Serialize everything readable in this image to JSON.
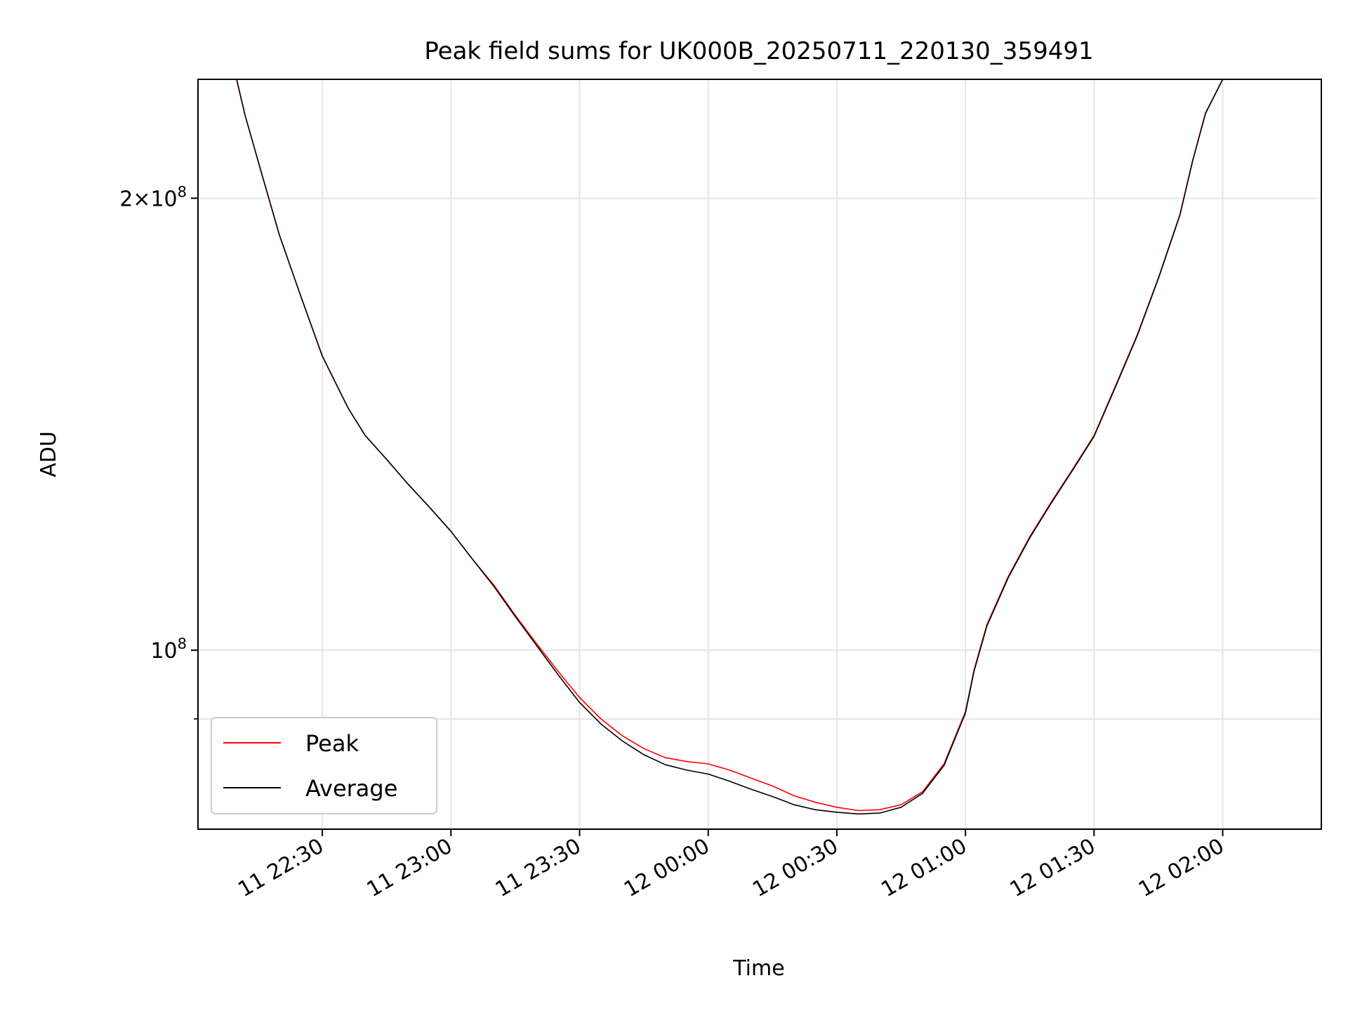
{
  "chart_data": {
    "type": "line",
    "title": "Peak field sums for UK000B_20250711_220130_359491",
    "xlabel": "Time",
    "ylabel": "ADU",
    "yscale": "log",
    "xlim": [
      "11 22:01",
      "12 02:23"
    ],
    "ylim": [
      76000000,
      240000000
    ],
    "grid": true,
    "legend_position": "lower-left",
    "x_ticks": [
      "11 22:30",
      "11 23:00",
      "11 23:30",
      "12 00:00",
      "12 00:30",
      "12 01:00",
      "12 01:30",
      "12 02:00"
    ],
    "y_major_ticks": [
      {
        "value": 100000000,
        "label": "10^8"
      },
      {
        "value": 200000000,
        "label": "2×10^8"
      }
    ],
    "y_minor_ticks": [
      90000000
    ],
    "series": [
      {
        "name": "Peak",
        "color": "#ff0000",
        "points": [
          [
            "11 22:10",
            240000000
          ],
          [
            "11 22:12",
            227000000
          ],
          [
            "11 22:16",
            207000000
          ],
          [
            "11 22:20",
            189000000
          ],
          [
            "11 22:25",
            172000000
          ],
          [
            "11 22:30",
            157000000
          ],
          [
            "11 22:36",
            145000000
          ],
          [
            "11 22:40",
            139000000
          ],
          [
            "11 22:45",
            134000000
          ],
          [
            "11 22:50",
            129000000
          ],
          [
            "11 22:55",
            124500000
          ],
          [
            "11 23:00",
            120000000
          ],
          [
            "11 23:05",
            115000000
          ],
          [
            "11 23:10",
            110500000
          ],
          [
            "11 23:15",
            105500000
          ],
          [
            "11 23:20",
            101000000
          ],
          [
            "11 23:25",
            96800000
          ],
          [
            "11 23:30",
            93000000
          ],
          [
            "11 23:35",
            90000000
          ],
          [
            "11 23:40",
            87700000
          ],
          [
            "11 23:45",
            86000000
          ],
          [
            "11 23:50",
            84800000
          ],
          [
            "11 23:55",
            84300000
          ],
          [
            "12 00:00",
            84000000
          ],
          [
            "12 00:05",
            83200000
          ],
          [
            "12 00:10",
            82200000
          ],
          [
            "12 00:15",
            81200000
          ],
          [
            "12 00:20",
            80000000
          ],
          [
            "12 00:25",
            79200000
          ],
          [
            "12 00:30",
            78600000
          ],
          [
            "12 00:35",
            78200000
          ],
          [
            "12 00:40",
            78300000
          ],
          [
            "12 00:45",
            78900000
          ],
          [
            "12 00:50",
            80500000
          ],
          [
            "12 00:55",
            84000000
          ],
          [
            "12 01:00",
            91000000
          ],
          [
            "12 01:02",
            97000000
          ],
          [
            "12 01:05",
            104000000
          ],
          [
            "12 01:10",
            112000000
          ],
          [
            "12 01:15",
            119000000
          ],
          [
            "12 01:20",
            125500000
          ],
          [
            "12 01:25",
            132000000
          ],
          [
            "12 01:30",
            139000000
          ],
          [
            "12 01:35",
            150000000
          ],
          [
            "12 01:40",
            162000000
          ],
          [
            "12 01:45",
            177000000
          ],
          [
            "12 01:50",
            195000000
          ],
          [
            "12 01:53",
            212000000
          ],
          [
            "12 01:56",
            228000000
          ],
          [
            "12 02:00",
            240000000
          ]
        ]
      },
      {
        "name": "Average",
        "color": "#000000",
        "points": [
          [
            "11 22:10",
            240000000
          ],
          [
            "11 22:12",
            227000000
          ],
          [
            "11 22:16",
            207000000
          ],
          [
            "11 22:20",
            189000000
          ],
          [
            "11 22:25",
            172000000
          ],
          [
            "11 22:30",
            157000000
          ],
          [
            "11 22:36",
            145000000
          ],
          [
            "11 22:40",
            139000000
          ],
          [
            "11 22:45",
            134000000
          ],
          [
            "11 22:50",
            129000000
          ],
          [
            "11 22:55",
            124500000
          ],
          [
            "11 23:00",
            120000000
          ],
          [
            "11 23:05",
            115000000
          ],
          [
            "11 23:10",
            110300000
          ],
          [
            "11 23:15",
            105300000
          ],
          [
            "11 23:20",
            100700000
          ],
          [
            "11 23:25",
            96300000
          ],
          [
            "11 23:30",
            92300000
          ],
          [
            "11 23:35",
            89300000
          ],
          [
            "11 23:40",
            87000000
          ],
          [
            "11 23:45",
            85200000
          ],
          [
            "11 23:50",
            83900000
          ],
          [
            "11 23:55",
            83200000
          ],
          [
            "12 00:00",
            82700000
          ],
          [
            "12 00:05",
            81800000
          ],
          [
            "12 00:10",
            80800000
          ],
          [
            "12 00:15",
            79900000
          ],
          [
            "12 00:20",
            78900000
          ],
          [
            "12 00:25",
            78300000
          ],
          [
            "12 00:30",
            78000000
          ],
          [
            "12 00:35",
            77800000
          ],
          [
            "12 00:40",
            77900000
          ],
          [
            "12 00:45",
            78600000
          ],
          [
            "12 00:50",
            80300000
          ],
          [
            "12 00:55",
            83800000
          ],
          [
            "12 01:00",
            90800000
          ],
          [
            "12 01:02",
            96800000
          ],
          [
            "12 01:05",
            103800000
          ],
          [
            "12 01:10",
            111800000
          ],
          [
            "12 01:15",
            118800000
          ],
          [
            "12 01:20",
            125300000
          ],
          [
            "12 01:25",
            131800000
          ],
          [
            "12 01:30",
            138800000
          ],
          [
            "12 01:35",
            149800000
          ],
          [
            "12 01:40",
            161800000
          ],
          [
            "12 01:45",
            176800000
          ],
          [
            "12 01:50",
            194800000
          ],
          [
            "12 01:53",
            211800000
          ],
          [
            "12 01:56",
            227800000
          ],
          [
            "12 02:00",
            240000000
          ]
        ]
      }
    ]
  }
}
